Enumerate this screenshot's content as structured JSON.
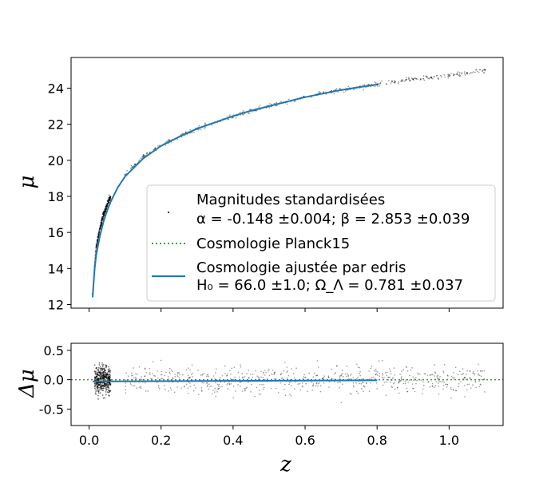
{
  "chart_data": [
    {
      "type": "scatter",
      "panel": "main",
      "ylabel": "μ",
      "xlim": [
        -0.05,
        1.15
      ],
      "ylim": [
        11.8,
        25.7
      ],
      "yticks": [
        12,
        14,
        16,
        18,
        20,
        22,
        24
      ],
      "grid": false,
      "legend_position": "lower-right",
      "series": [
        {
          "name": "Magnitudes standardisées",
          "name_line2": "α = -0.148 ±0.004; β =  2.853 ±0.039",
          "kind": "scatter",
          "color": "#000000",
          "x": [
            0.01,
            0.02,
            0.03,
            0.04,
            0.05,
            0.055,
            0.1,
            0.15,
            0.2,
            0.25,
            0.3,
            0.35,
            0.4,
            0.45,
            0.5,
            0.55,
            0.6,
            0.65,
            0.7,
            0.75,
            0.8,
            0.85,
            0.9,
            0.95,
            1.0,
            1.05,
            1.1
          ],
          "y": [
            12.6,
            15.2,
            16.2,
            17.0,
            17.5,
            17.8,
            19.2,
            20.2,
            20.8,
            21.3,
            21.75,
            22.1,
            22.45,
            22.75,
            23.0,
            23.25,
            23.5,
            23.7,
            23.9,
            24.05,
            24.2,
            24.35,
            24.5,
            24.6,
            24.7,
            24.85,
            25.0
          ]
        },
        {
          "name": "Cosmologie Planck15",
          "kind": "line",
          "style": "dotted",
          "color": "#2ca02c"
        },
        {
          "name": "Cosmologie ajustée par edris",
          "name_line2": "H₀ = 66.0 ±1.0; Ω_Λ =  0.781 ±0.037",
          "kind": "line",
          "color": "#1f77b4",
          "x": [
            0.01,
            0.015,
            0.02,
            0.03,
            0.04,
            0.05,
            0.06,
            0.08,
            0.1,
            0.15,
            0.2,
            0.25,
            0.3,
            0.35,
            0.4,
            0.45,
            0.5,
            0.55,
            0.6,
            0.65,
            0.7,
            0.75,
            0.8
          ],
          "y": [
            12.4,
            13.9,
            14.8,
            15.8,
            16.6,
            17.2,
            17.7,
            18.5,
            19.1,
            20.1,
            20.8,
            21.3,
            21.75,
            22.1,
            22.45,
            22.75,
            23.0,
            23.25,
            23.5,
            23.7,
            23.9,
            24.05,
            24.2
          ]
        }
      ]
    },
    {
      "type": "scatter",
      "panel": "residuals",
      "xlabel": "z",
      "ylabel": "Δμ",
      "xlim": [
        -0.05,
        1.15
      ],
      "ylim": [
        -0.78,
        0.62
      ],
      "xticks": [
        0.0,
        0.2,
        0.4,
        0.6,
        0.8,
        1.0
      ],
      "yticks": [
        -0.5,
        0.0,
        0.5
      ],
      "grid": false,
      "series": [
        {
          "kind": "scatter",
          "color": "#000000",
          "spread_low_z": 0.25,
          "spread_high_z": 0.18,
          "x_range_dense": [
            0.01,
            0.06
          ],
          "x_range_sparse": [
            0.1,
            1.1
          ]
        },
        {
          "kind": "line",
          "style": "dotted",
          "color": "#2ca02c",
          "x": [
            -0.05,
            1.15
          ],
          "y": [
            0.0,
            0.0
          ]
        },
        {
          "kind": "line",
          "color": "#1f77b4",
          "x": [
            0.01,
            0.8
          ],
          "y": [
            -0.03,
            -0.01
          ]
        }
      ]
    }
  ]
}
